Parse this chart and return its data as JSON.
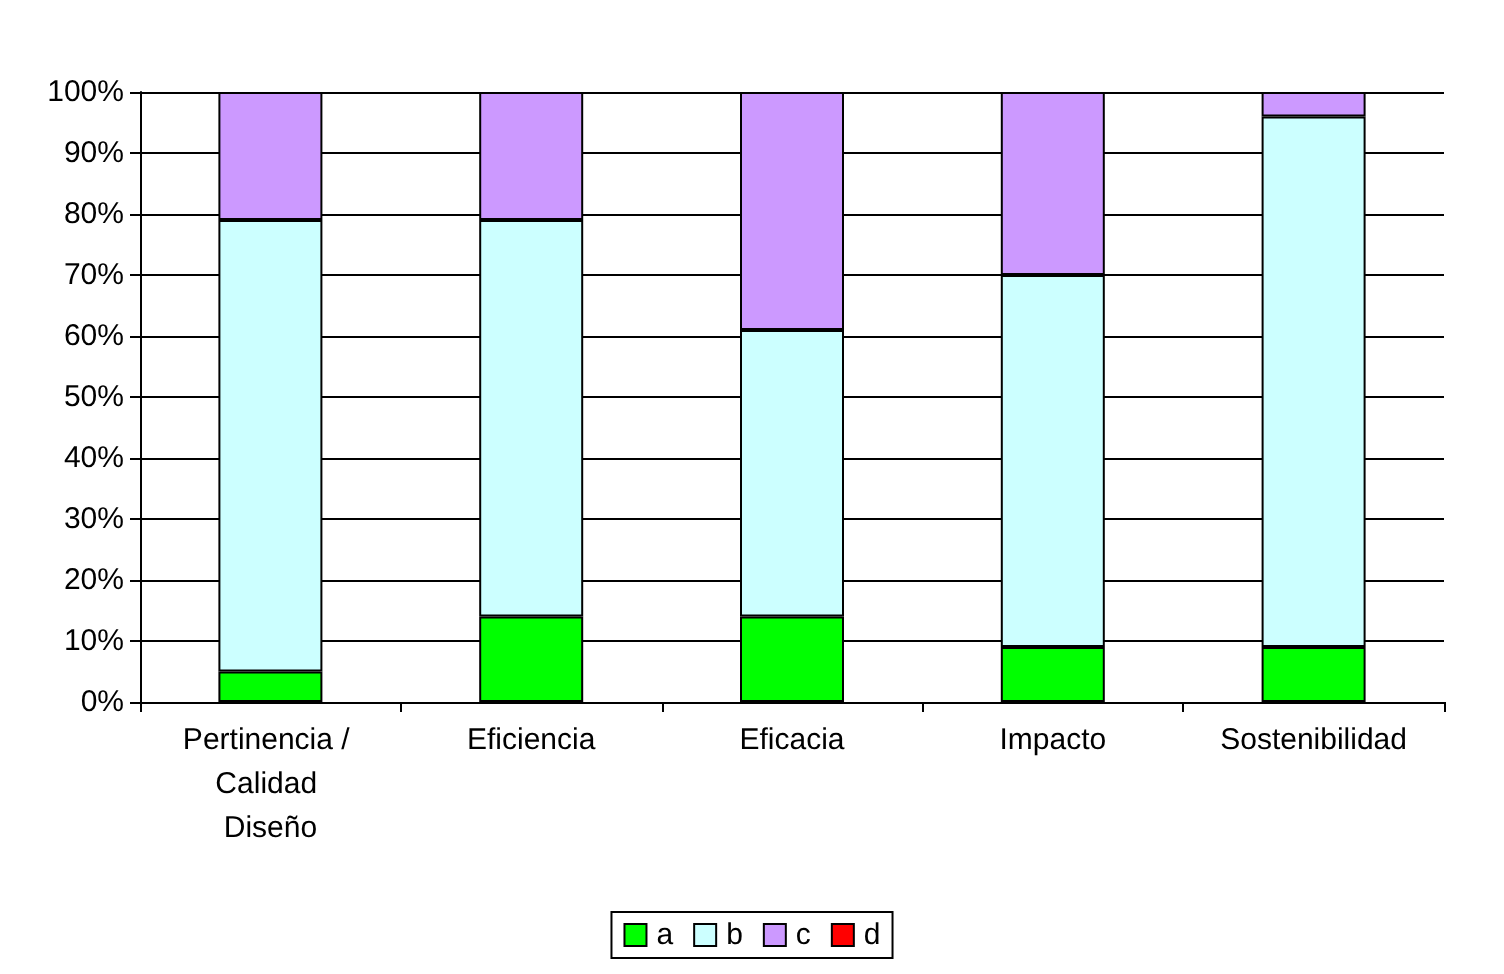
{
  "chart_data": {
    "type": "bar",
    "stacked": true,
    "categories": [
      "Pertinencia / Calidad Diseño",
      "Eficiencia",
      "Eficacia",
      "Impacto",
      "Sostenibilidad"
    ],
    "series": [
      {
        "name": "a",
        "color": "#00ff00",
        "values": [
          5,
          14,
          14,
          9,
          9
        ]
      },
      {
        "name": "b",
        "color": "#ccffff",
        "values": [
          74,
          65,
          47,
          61,
          87
        ]
      },
      {
        "name": "c",
        "color": "#cc99ff",
        "values": [
          21,
          21,
          39,
          30,
          4
        ]
      },
      {
        "name": "d",
        "color": "#ff0000",
        "values": [
          0,
          0,
          0,
          0,
          0
        ]
      }
    ],
    "ylim": [
      0,
      100
    ],
    "yticks": [
      {
        "value": 0,
        "label": "0%"
      },
      {
        "value": 10,
        "label": "10%"
      },
      {
        "value": 20,
        "label": "20%"
      },
      {
        "value": 30,
        "label": "30%"
      },
      {
        "value": 40,
        "label": "40%"
      },
      {
        "value": 50,
        "label": "50%"
      },
      {
        "value": 60,
        "label": "60%"
      },
      {
        "value": 70,
        "label": "70%"
      },
      {
        "value": 80,
        "label": "80%"
      },
      {
        "value": 90,
        "label": "90%"
      },
      {
        "value": 100,
        "label": "100%"
      }
    ],
    "grid": "y",
    "legend": "bottom"
  }
}
